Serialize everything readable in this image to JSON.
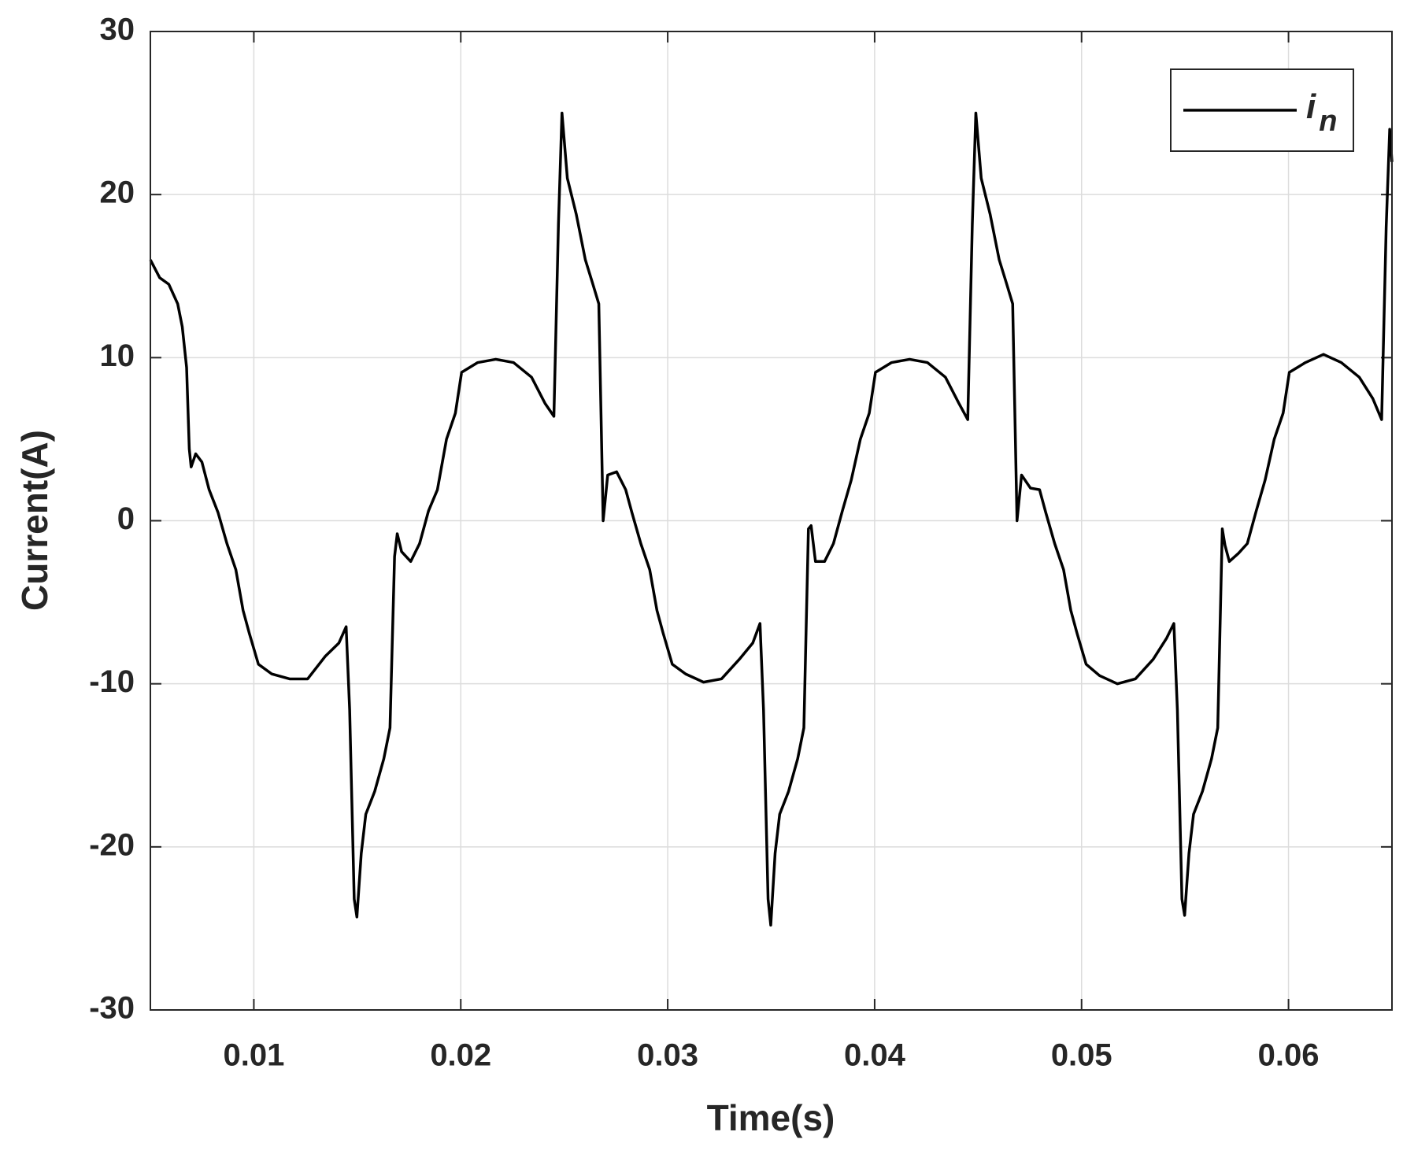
{
  "chart_data": {
    "type": "line",
    "xlabel": "Time(s)",
    "ylabel": "Current(A)",
    "xlim": [
      0.005,
      0.065
    ],
    "ylim": [
      -30,
      30
    ],
    "xticks": [
      0.01,
      0.02,
      0.03,
      0.04,
      0.05,
      0.06
    ],
    "yticks": [
      -30,
      -20,
      -10,
      0,
      10,
      20,
      30
    ],
    "grid": true,
    "legend": "upper-right",
    "series": [
      {
        "name": "in",
        "color": "#000000",
        "x": [
          0.005,
          0.00545,
          0.00589,
          0.00632,
          0.00654,
          0.00675,
          0.00688,
          0.00697,
          0.00719,
          0.00749,
          0.00784,
          0.00827,
          0.0087,
          0.00913,
          0.00948,
          0.00978,
          0.01022,
          0.01087,
          0.01173,
          0.0126,
          0.01346,
          0.01411,
          0.01446,
          0.01463,
          0.01485,
          0.01498,
          0.01519,
          0.01541,
          0.01584,
          0.01628,
          0.01658,
          0.0168,
          0.01693,
          0.01714,
          0.01758,
          0.01801,
          0.01844,
          0.01887,
          0.01931,
          0.01974,
          0.02004,
          0.02082,
          0.02169,
          0.02255,
          0.02342,
          0.02407,
          0.0245,
          0.02472,
          0.02489,
          0.02515,
          0.02558,
          0.02602,
          0.02636,
          0.02667,
          0.02688,
          0.0271,
          0.02753,
          0.02797,
          0.02827,
          0.0287,
          0.02913,
          0.02948,
          0.02978,
          0.03022,
          0.03087,
          0.03173,
          0.0326,
          0.03346,
          0.03411,
          0.03446,
          0.03463,
          0.03485,
          0.03498,
          0.03519,
          0.03541,
          0.03584,
          0.03628,
          0.03658,
          0.0368,
          0.03693,
          0.03714,
          0.03758,
          0.03801,
          0.03844,
          0.03887,
          0.03931,
          0.03974,
          0.04004,
          0.04082,
          0.04169,
          0.04255,
          0.04342,
          0.04407,
          0.0445,
          0.04472,
          0.04489,
          0.04515,
          0.04558,
          0.04602,
          0.04636,
          0.04667,
          0.04688,
          0.0471,
          0.04753,
          0.04797,
          0.04827,
          0.0487,
          0.04913,
          0.04948,
          0.04978,
          0.05022,
          0.05087,
          0.05173,
          0.0526,
          0.05346,
          0.05411,
          0.05446,
          0.05463,
          0.05485,
          0.05498,
          0.05519,
          0.05541,
          0.05584,
          0.05628,
          0.05658,
          0.0568,
          0.05693,
          0.05714,
          0.05758,
          0.05801,
          0.05844,
          0.05887,
          0.05931,
          0.05974,
          0.06004,
          0.06082,
          0.06169,
          0.06255,
          0.06342,
          0.06407,
          0.0645,
          0.06472,
          0.06489,
          0.065
        ],
        "values": [
          16,
          14.9,
          14.5,
          13.3,
          11.9,
          9.4,
          4.4,
          3.3,
          4.1,
          3.6,
          1.9,
          0.5,
          -1.4,
          -3,
          -5.5,
          -6.9,
          -8.8,
          -9.4,
          -9.7,
          -9.7,
          -8.3,
          -7.5,
          -6.5,
          -11.6,
          -23.2,
          -24.3,
          -20.4,
          -18,
          -16.6,
          -14.6,
          -12.7,
          -2.2,
          -0.8,
          -1.9,
          -2.5,
          -1.4,
          0.6,
          1.9,
          5,
          6.6,
          9.1,
          9.7,
          9.9,
          9.7,
          8.8,
          7.2,
          6.4,
          18.2,
          25,
          21,
          18.8,
          16,
          14.6,
          13.3,
          0,
          2.8,
          3,
          1.9,
          0.5,
          -1.4,
          -3,
          -5.5,
          -6.9,
          -8.8,
          -9.4,
          -9.9,
          -9.7,
          -8.5,
          -7.5,
          -6.3,
          -11.6,
          -23.2,
          -24.8,
          -20.4,
          -18,
          -16.6,
          -14.6,
          -12.7,
          -0.5,
          -0.3,
          -2.5,
          -2.5,
          -1.4,
          0.6,
          2.5,
          5,
          6.6,
          9.1,
          9.7,
          9.9,
          9.7,
          8.8,
          7.2,
          6.2,
          18.2,
          25,
          21,
          18.8,
          16,
          14.6,
          13.3,
          0,
          2.8,
          2,
          1.9,
          0.5,
          -1.4,
          -3,
          -5.5,
          -6.9,
          -8.8,
          -9.5,
          -10,
          -9.7,
          -8.5,
          -7.2,
          -6.3,
          -11.6,
          -23.2,
          -24.2,
          -20.4,
          -18,
          -16.6,
          -14.6,
          -12.7,
          -0.5,
          -1.5,
          -2.5,
          -2,
          -1.4,
          0.6,
          2.5,
          5,
          6.6,
          9.1,
          9.7,
          10.2,
          9.7,
          8.8,
          7.5,
          6.2,
          18,
          24,
          22
        ]
      }
    ]
  }
}
